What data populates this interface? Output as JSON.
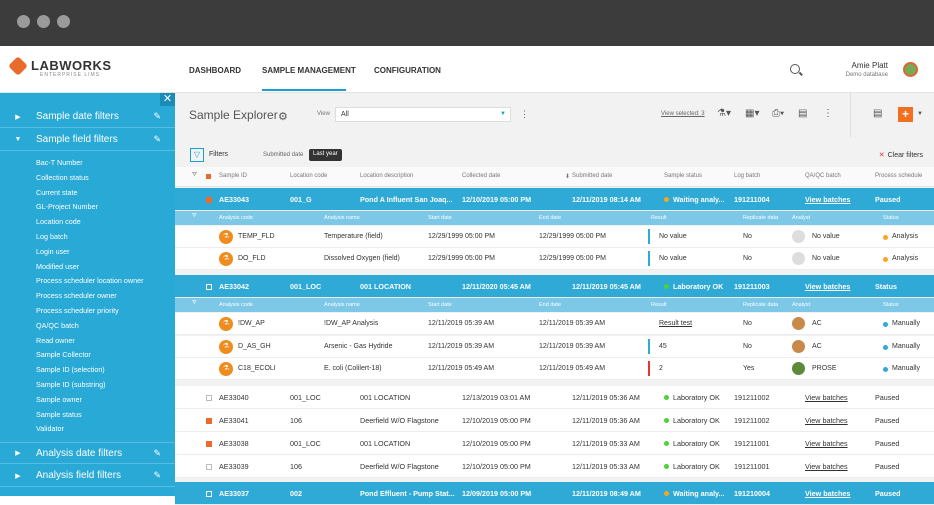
{
  "app": {
    "logo": "LABWORKS",
    "logo_sub": "ENTERPRISE LIMS"
  },
  "nav": {
    "items": [
      "DASHBOARD",
      "SAMPLE MANAGEMENT",
      "CONFIGURATION"
    ],
    "active": "SAMPLE MANAGEMENT"
  },
  "user": {
    "name": "Amie Platt",
    "db": "Demo database"
  },
  "sidebar": {
    "close": "✕",
    "sections": [
      {
        "label": "Sample date filters"
      },
      {
        "label": "Sample field filters"
      },
      {
        "label": "Analysis date filters"
      },
      {
        "label": "Analysis field filters"
      }
    ],
    "fields": [
      "Bac-T Number",
      "Collection status",
      "Current state",
      "GL-Project Number",
      "Location code",
      "Log batch",
      "Login user",
      "Modified user",
      "Process scheduler location owner",
      "Process scheduler owner",
      "Process scheduler priority",
      "QA/QC batch",
      "Read owner",
      "Sample Collector",
      "Sample ID (selection)",
      "Sample ID (substring)",
      "Sample owner",
      "Sample status",
      "Validator"
    ]
  },
  "toolbar": {
    "title": "Sample Explorer",
    "view_label": "View",
    "view_value": "All",
    "view_selected": "View selected: 3",
    "plus": "+"
  },
  "filters": {
    "label": "Filters",
    "submitted": "Submitted date",
    "chip": "Last year",
    "clear": "Clear filters"
  },
  "columns": [
    "Sample ID",
    "Location code",
    "Location description",
    "Collected date",
    "Submitted date",
    "Sample status",
    "Log batch",
    "QA/QC batch",
    "Process schedule"
  ],
  "sub_columns": [
    "Analysis code",
    "Analysis name",
    "Start date",
    "End date",
    "Result",
    "Replicate data",
    "Analyst",
    "Status"
  ],
  "rows": [
    {
      "id": "AE33043",
      "loc": "001_G",
      "desc": "Pond A Influent San Joaq...",
      "coll": "12/10/2019 05:00 PM",
      "sub": "12/11/2019 08:14 AM",
      "status": "Waiting analy...",
      "status_color": "#f5a623",
      "batch": "191211004",
      "qa": "View batches",
      "proc": "Paused",
      "selected": true,
      "marked": true
    },
    {
      "id": "AE33042",
      "loc": "001_LOC",
      "desc": "001 LOCATION",
      "coll": "12/11/2020 05:45 AM",
      "sub": "12/11/2019 05:45 AM",
      "status": "Laboratory OK",
      "status_color": "#4cd137",
      "batch": "191211003",
      "qa": "View batches",
      "proc": "Status",
      "selected": true,
      "marked": false
    },
    {
      "id": "AE33040",
      "loc": "001_LOC",
      "desc": "001 LOCATION",
      "coll": "12/13/2019 03:01 AM",
      "sub": "12/11/2019 05:36 AM",
      "status": "Laboratory OK",
      "status_color": "#4cd137",
      "batch": "191211002",
      "qa": "View batches",
      "proc": "Paused",
      "selected": false,
      "marked": false
    },
    {
      "id": "AE33041",
      "loc": "106",
      "desc": "Deerfield W/O Flagstone",
      "coll": "12/10/2019 05:00 PM",
      "sub": "12/11/2019 05:36 AM",
      "status": "Laboratory OK",
      "status_color": "#4cd137",
      "batch": "191211002",
      "qa": "View batches",
      "proc": "Paused",
      "selected": false,
      "marked": true
    },
    {
      "id": "AE33038",
      "loc": "001_LOC",
      "desc": "001 LOCATION",
      "coll": "12/10/2019 05:00 PM",
      "sub": "12/11/2019 05:33 AM",
      "status": "Laboratory OK",
      "status_color": "#4cd137",
      "batch": "191211001",
      "qa": "View batches",
      "proc": "Paused",
      "selected": false,
      "marked": true
    },
    {
      "id": "AE33039",
      "loc": "106",
      "desc": "Deerfield W/O Flagstone",
      "coll": "12/10/2019 05:00 PM",
      "sub": "12/11/2019 05:33 AM",
      "status": "Laboratory OK",
      "status_color": "#4cd137",
      "batch": "191211001",
      "qa": "View batches",
      "proc": "Paused",
      "selected": false,
      "marked": false
    },
    {
      "id": "AE33037",
      "loc": "002",
      "desc": "Pond Effluent - Pump Stat...",
      "coll": "12/09/2019 05:00 PM",
      "sub": "12/11/2019 08:49 AM",
      "status": "Waiting analy...",
      "status_color": "#f5a623",
      "batch": "191210004",
      "qa": "View batches",
      "proc": "Paused",
      "selected": true,
      "marked": false
    }
  ],
  "sub_a": [
    {
      "code": "TEMP_FLD",
      "name": "Temperature (field)",
      "start": "12/29/1999 05:00 PM",
      "end": "12/29/1999 05:00 PM",
      "result": "No value",
      "result_link": false,
      "bar": "#2fa9d6",
      "rep": "No",
      "analyst": "No value",
      "avatar": "#ddd",
      "status": "Analysis",
      "status_color": "#f5a623"
    },
    {
      "code": "DO_FLD",
      "name": "Dissolved Oxygen (field)",
      "start": "12/29/1999 05:00 PM",
      "end": "12/29/1999 05:00 PM",
      "result": "No value",
      "result_link": false,
      "bar": "#2fa9d6",
      "rep": "No",
      "analyst": "No value",
      "avatar": "#ddd",
      "status": "Analysis",
      "status_color": "#f5a623"
    }
  ],
  "sub_b": [
    {
      "code": "!DW_AP",
      "name": "!DW_AP Analysis",
      "start": "12/11/2019 05:39 AM",
      "end": "12/11/2019 05:39 AM",
      "result": "Result test",
      "result_link": true,
      "bar": "",
      "rep": "No",
      "analyst": "AC",
      "avatar": "#c8894a",
      "status": "Manually",
      "status_color": "#2fa9d6"
    },
    {
      "code": "D_AS_GH",
      "name": "Arsenic - Gas Hydride",
      "start": "12/11/2019 05:39 AM",
      "end": "12/11/2019 05:39 AM",
      "result": "45",
      "result_link": false,
      "bar": "#2fa9d6",
      "rep": "No",
      "analyst": "AC",
      "avatar": "#c8894a",
      "status": "Manually",
      "status_color": "#2fa9d6"
    },
    {
      "code": "C18_ECOLI",
      "name": "E. coli (Colilert-18)",
      "start": "12/11/2019 05:49 AM",
      "end": "12/11/2019 05:49 AM",
      "result": "2",
      "result_link": false,
      "bar": "#e33",
      "rep": "Yes",
      "analyst": "PROSE",
      "avatar": "#5a8a3a",
      "status": "Manually",
      "status_color": "#2fa9d6"
    }
  ],
  "colors": {
    "accent": "#2fa9d6",
    "brand": "#e96a2a",
    "sidebar": "#28a9d6"
  }
}
